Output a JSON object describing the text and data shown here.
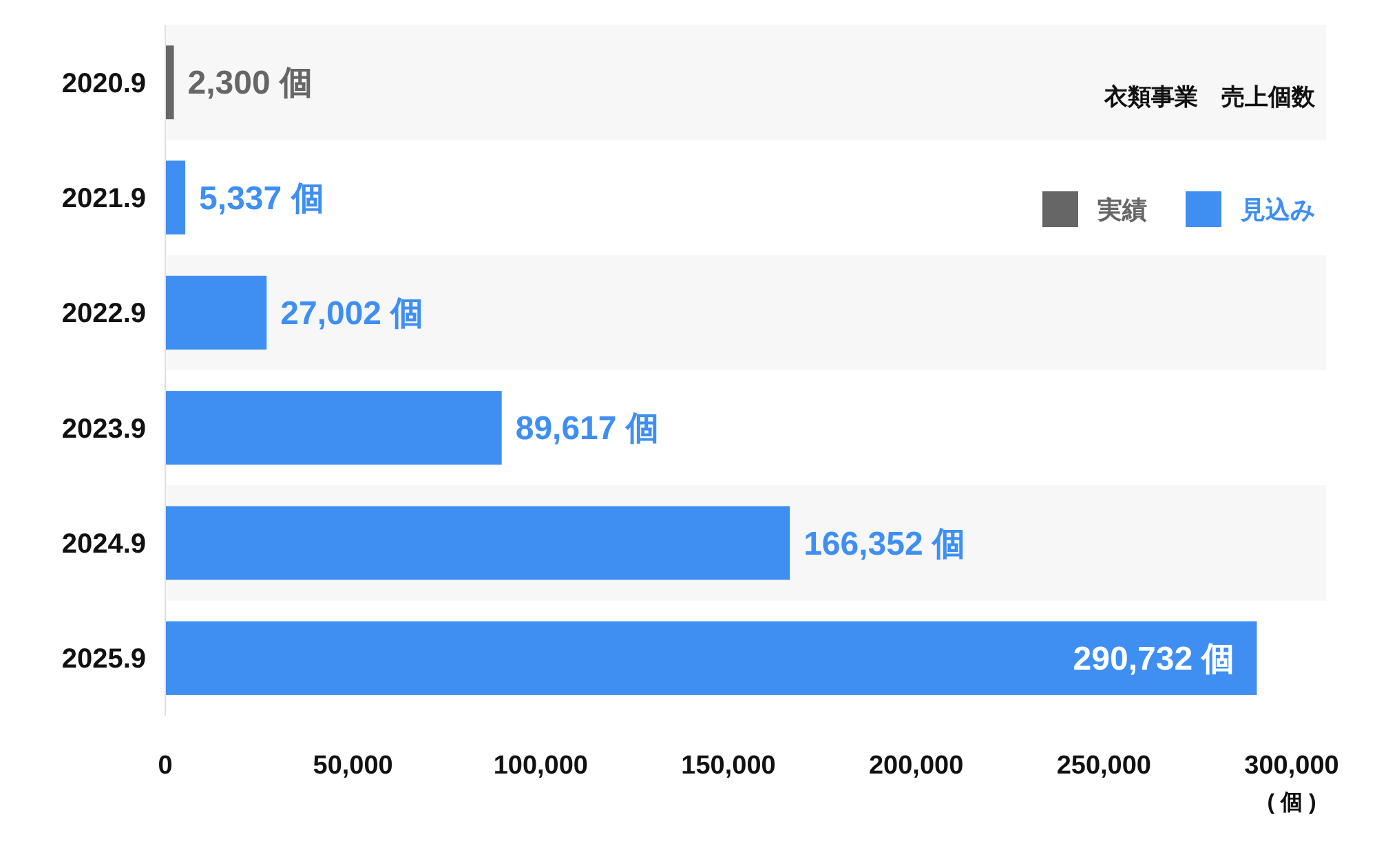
{
  "chart_data": {
    "type": "bar",
    "orientation": "horizontal",
    "title": "衣類事業　売上個数",
    "xlabel": "( 個 )",
    "categories": [
      "2020.9",
      "2021.9",
      "2022.9",
      "2023.9",
      "2024.9",
      "2025.9"
    ],
    "series": [
      {
        "name": "実績",
        "color": "#666666",
        "values": [
          2300,
          null,
          null,
          null,
          null,
          null
        ],
        "value_labels": [
          "2,300 個",
          null,
          null,
          null,
          null,
          null
        ]
      },
      {
        "name": "見込み",
        "color": "#3f8ff3",
        "values": [
          null,
          5337,
          27002,
          89617,
          166352,
          290732
        ],
        "value_labels": [
          null,
          "5,337 個",
          "27,002 個",
          "89,617 個",
          "166,352 個",
          "290,732 個"
        ]
      }
    ],
    "xlim": [
      0,
      300000
    ],
    "xticks": [
      {
        "value": 0,
        "label": "0"
      },
      {
        "value": 50000,
        "label": "50,000"
      },
      {
        "value": 100000,
        "label": "100,000"
      },
      {
        "value": 150000,
        "label": "150,000"
      },
      {
        "value": 200000,
        "label": "200,000"
      },
      {
        "value": 250000,
        "label": "250,000"
      },
      {
        "value": 300000,
        "label": "300,000"
      }
    ],
    "legend": "top right",
    "grid": false
  }
}
